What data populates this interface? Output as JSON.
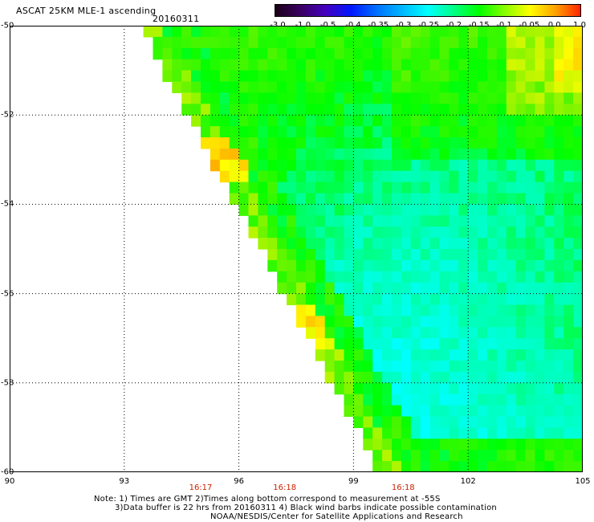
{
  "header": {
    "title": "ASCAT 25KM MLE-1 ascending",
    "date": "20160311"
  },
  "colorbar": {
    "labels": [
      "-3.0",
      "-1.0",
      "-0.5",
      "-0.4",
      "-0.35",
      "-0.3",
      "-0.25",
      "-0.2",
      "-0.15",
      "-0.1",
      "-0.05",
      "0.0",
      "1.0"
    ],
    "colors": [
      "#1a0015",
      "#3a0060",
      "#4400c0",
      "#0018ff",
      "#0070ff",
      "#00b8ff",
      "#00ffff",
      "#00ff88",
      "#00ff00",
      "#88ff00",
      "#ffff00",
      "#ffa000",
      "#ff2000"
    ]
  },
  "map": {
    "lat_labels": [
      "-50",
      "-52",
      "-54",
      "-56",
      "-58",
      "-60"
    ],
    "lon_labels": [
      "90",
      "93",
      "96",
      "99",
      "102",
      "105"
    ],
    "time_labels": [
      "16:17",
      "16:18",
      "16:18"
    ]
  },
  "notes": {
    "line1": "Note: 1) Times are GMT 2)Times along bottom correspond to measurement at -55S",
    "line2": "3)Data buffer is 22 hrs from 20160311 4) Black wind barbs indicate possible contamination",
    "line3": "NOAA/NESDIS/Center for Satellite Applications and Research"
  }
}
